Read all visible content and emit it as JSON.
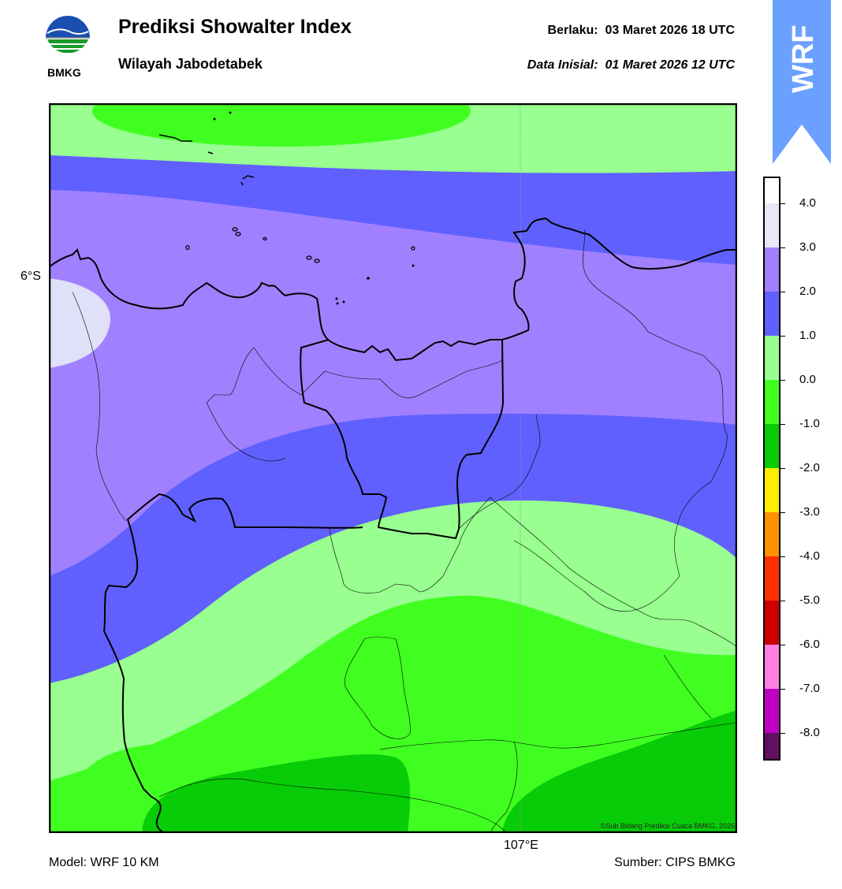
{
  "header": {
    "title": "Prediksi Showalter Index",
    "subtitle": "Wilayah Jabodetabek",
    "valid_label": "Berlaku:",
    "valid_time": "03 Maret 2026 18 UTC",
    "init_label": "Data Inisial:",
    "init_time": "01 Maret 2026 12 UTC"
  },
  "logo": {
    "text": "BMKG",
    "icon": "bmkg-logo-icon"
  },
  "badge": {
    "text": "WRF",
    "color": "#6aa0ff"
  },
  "map": {
    "lat_label": "6°S",
    "lon_label": "107°E",
    "credit": "©Sub Bidang Prediksi Cuaca BMKG, 2026"
  },
  "colorbar": {
    "labels": [
      "4.0",
      "3.0",
      "2.0",
      "1.0",
      "0.0",
      "-1.0",
      "-2.0",
      "-3.0",
      "-4.0",
      "-5.0",
      "-6.0",
      "-7.0",
      "-8.0"
    ],
    "colors": [
      "#e8e8f8",
      "#a080ff",
      "#6060ff",
      "#98ff90",
      "#40ff20",
      "#08cc08",
      "#ffee00",
      "#ff9000",
      "#ff3000",
      "#cc0000",
      "#ff80e0",
      "#c000c0",
      "#601060"
    ]
  },
  "footer": {
    "model": "Model: WRF 10 KM",
    "source": "Sumber: CIPS BMKG"
  }
}
